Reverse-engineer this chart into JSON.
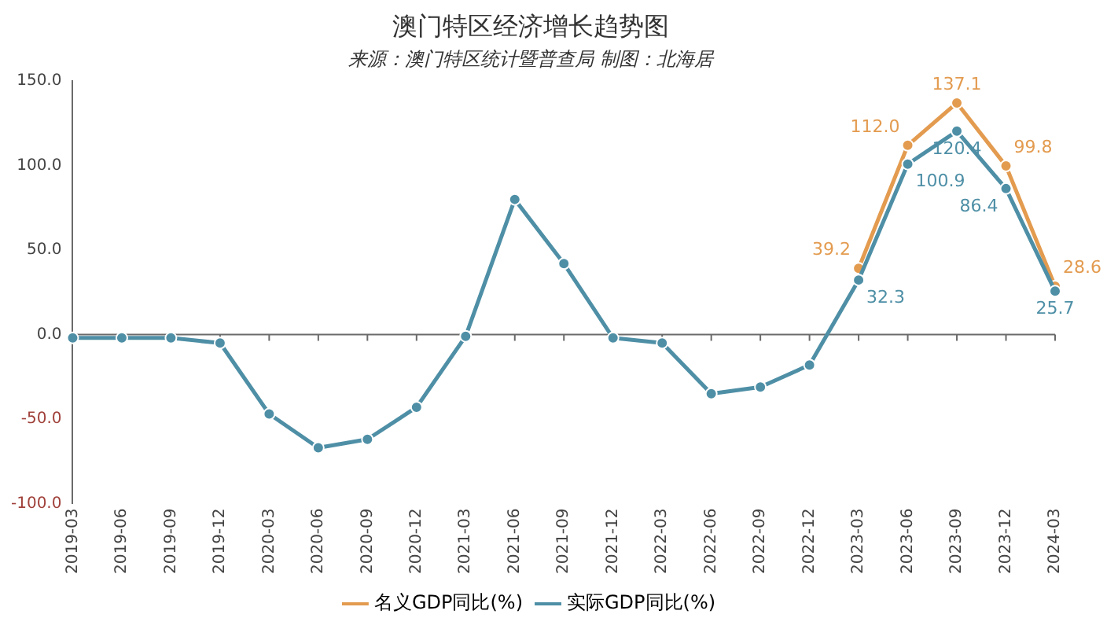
{
  "chart_data": {
    "type": "line",
    "title": "澳门特区经济增长趋势图",
    "subtitle": "来源：澳门特区统计暨普查局 制图：北海居",
    "categories": [
      "2019-03",
      "2019-06",
      "2019-09",
      "2019-12",
      "2020-03",
      "2020-06",
      "2020-09",
      "2020-12",
      "2021-03",
      "2021-06",
      "2021-09",
      "2021-12",
      "2022-03",
      "2022-06",
      "2022-09",
      "2022-12",
      "2023-03",
      "2023-06",
      "2023-09",
      "2023-12",
      "2024-03"
    ],
    "series": [
      {
        "name": "名义GDP同比(%)",
        "color": "#e39b4f",
        "values": [
          null,
          null,
          null,
          null,
          null,
          null,
          null,
          null,
          null,
          null,
          null,
          null,
          null,
          null,
          null,
          null,
          39.2,
          112.0,
          137.1,
          99.8,
          28.6
        ],
        "value_labels": [
          null,
          null,
          null,
          null,
          null,
          null,
          null,
          null,
          null,
          null,
          null,
          null,
          null,
          null,
          null,
          null,
          "39.2",
          "112.0",
          "137.1",
          "99.8",
          "28.6"
        ]
      },
      {
        "name": "实际GDP同比(%)",
        "color": "#4e8fa6",
        "values": [
          -2,
          -2,
          -2,
          -5,
          -47,
          -67,
          -62,
          -43,
          -1,
          80,
          42,
          -2,
          -5,
          -35,
          -31,
          -18,
          32.3,
          100.9,
          120.4,
          86.4,
          25.7
        ],
        "value_labels": [
          null,
          null,
          null,
          null,
          null,
          null,
          null,
          null,
          null,
          null,
          null,
          null,
          null,
          null,
          null,
          null,
          "32.3",
          "100.9",
          "120.4",
          "86.4",
          "25.7"
        ]
      }
    ],
    "ylim": [
      -100,
      150
    ],
    "yticks": [
      {
        "value": -100,
        "label": "-100.0"
      },
      {
        "value": -50,
        "label": "-50.0"
      },
      {
        "value": 0,
        "label": "0.0"
      },
      {
        "value": 50,
        "label": "50.0"
      },
      {
        "value": 100,
        "label": "100.0"
      },
      {
        "value": 150,
        "label": "150.0"
      }
    ],
    "ref_lines": [
      {
        "axis": "y",
        "value": 0
      }
    ],
    "grid": false,
    "legend": "bottom",
    "marker": "circle",
    "line_style": "solid"
  }
}
